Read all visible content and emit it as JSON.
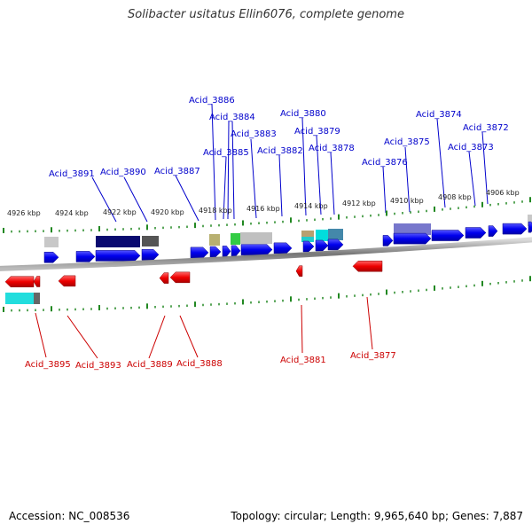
{
  "title": "Solibacter usitatus Ellin6076, complete genome",
  "footer": {
    "accession": "Accession: NC_008536",
    "stats": "Topology: circular; Length: 9,965,640 bp; Genes: 7,887"
  },
  "scale_labels": [
    "4926 kbp",
    "4924 kbp",
    "4922 kbp",
    "4920 kbp",
    "4918 kbp",
    "4916 kbp",
    "4914 kbp",
    "4912 kbp",
    "4910 kbp",
    "4908 kbp",
    "4906 kbp"
  ],
  "top_gene_labels": [
    "Acid_3886",
    "Acid_3884",
    "Acid_3883",
    "Acid_3885",
    "Acid_3880",
    "Acid_3879",
    "Acid_3878",
    "Acid_3882",
    "Acid_3874",
    "Acid_3872",
    "Acid_3875",
    "Acid_3873",
    "Acid_3876",
    "Acid_3891",
    "Acid_3890",
    "Acid_3887"
  ],
  "bottom_gene_labels": [
    "Acid_3895",
    "Acid_3893",
    "Acid_3889",
    "Acid_3888",
    "Acid_3881",
    "Acid_3877"
  ],
  "colors": {
    "forward_gene": "#0000ee",
    "reverse_gene": "#ee0000",
    "top_label": "#0000cc",
    "bottom_label": "#cc0000",
    "tick": "#228822",
    "backbone": "#888888"
  }
}
